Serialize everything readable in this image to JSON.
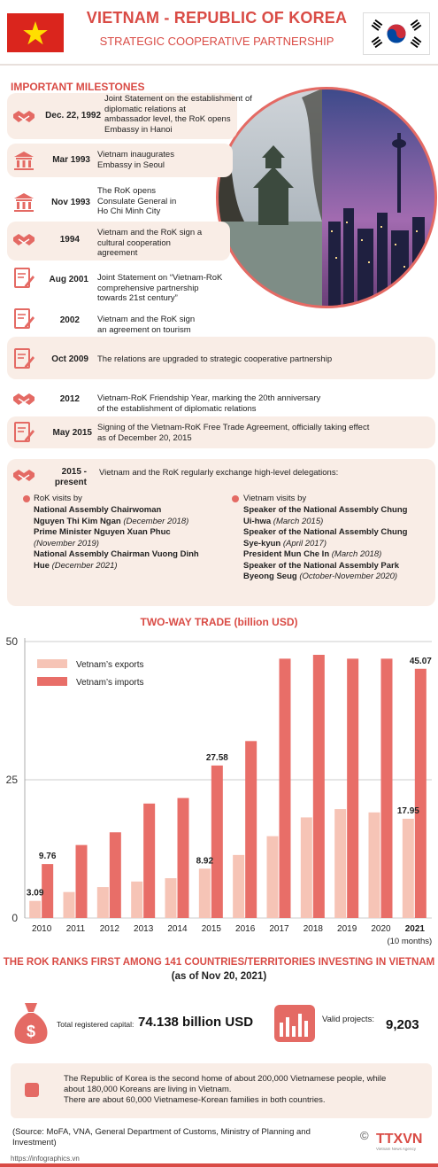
{
  "header": {
    "title": "VIETNAM - REPUBLIC OF KOREA",
    "subtitle": "STRATEGIC COOPERATIVE PARTNERSHIP",
    "colors": {
      "accent": "#d94b45",
      "soft": "#f9ede6"
    }
  },
  "milestones": {
    "title": "IMPORTANT MILESTONES",
    "items": [
      {
        "icon": "handshake-icon",
        "date": "Dec. 22, 1992",
        "text": [
          "Joint Statement on the establishment of",
          "diplomatic relations at",
          "ambassador level, the RoK opens",
          "Embassy in Hanoi"
        ]
      },
      {
        "icon": "building-icon",
        "date": "Mar 1993",
        "text": [
          "Vietnam inaugurates",
          " Embassy in Seoul"
        ]
      },
      {
        "icon": "building-icon",
        "date": "Nov 1993",
        "text": [
          "The RoK opens",
          "Consulate General in",
          "Ho Chi Minh City"
        ]
      },
      {
        "icon": "handshake-icon",
        "date": "1994",
        "text": [
          "Vietnam and the RoK sign a",
          "cultural cooperation",
          "agreement"
        ]
      },
      {
        "icon": "document-icon",
        "date": "Aug 2001",
        "text": [
          "Joint Statement on “Vietnam-RoK",
          "comprehensive partnership",
          "towards 21st century”"
        ]
      },
      {
        "icon": "document-icon",
        "date": "2002",
        "text": [
          "Vietnam and the RoK sign",
          "an agreement on tourism"
        ]
      },
      {
        "icon": "document-icon",
        "date": "Oct 2009",
        "text": [
          "The relations are upgraded to strategic cooperative partnership"
        ]
      },
      {
        "icon": "handshake-icon",
        "date": "2012",
        "text": [
          "Vietnam-RoK Friendship Year, marking the 20th anniversary",
          "of the establishment of diplomatic relations"
        ]
      },
      {
        "icon": "document-icon",
        "date": "May 2015",
        "text": [
          "Signing of the Vietnam-RoK Free Trade Agreement, officially taking effect",
          "as of December 20, 2015"
        ]
      },
      {
        "icon": "handshake-icon",
        "date": "2015 -",
        "date2": "present",
        "text": [
          "Vietnam and the RoK regularly exchange high-level delegations:"
        ]
      }
    ]
  },
  "visits": {
    "rok_head": "RoK visits by",
    "rok": [
      {
        "who": "National Assembly Chairwoman",
        "when": ""
      },
      {
        "who": "Nguyen Thi Kim Ngan ",
        "when": "(December 2018)"
      },
      {
        "who": "Prime Minister Nguyen Xuan Phuc",
        "when": ""
      },
      {
        "who": "",
        "when": "(November 2019)"
      },
      {
        "who": "National Assembly Chairman Vuong Dinh",
        "when": ""
      },
      {
        "who": "Hue ",
        "when": "(December 2021)"
      }
    ],
    "vn_head": "Vietnam visits by",
    "vn": [
      {
        "who": "Speaker of the National Assembly Chung",
        "when": ""
      },
      {
        "who": "Ui-hwa ",
        "when": "(March 2015)"
      },
      {
        "who": "Speaker of the National Assembly Chung",
        "when": ""
      },
      {
        "who": "Sye-kyun ",
        "when": "(April 2017)"
      },
      {
        "who": "President Mun Che In ",
        "when": "(March 2018)"
      },
      {
        "who": "Speaker of the National Assembly Park",
        "when": ""
      },
      {
        "who": "Byeong Seug ",
        "when": "(October-November 2020)"
      }
    ]
  },
  "chart_data": {
    "type": "bar",
    "title": "TWO-WAY TRADE  (billion USD)",
    "categories": [
      "2010",
      "2011",
      "2012",
      "2013",
      "2014",
      "2015",
      "2016",
      "2017",
      "2018",
      "2019",
      "2020",
      "2021"
    ],
    "category_note": "(10 months)",
    "ylim": [
      0,
      50
    ],
    "yticks": [
      0,
      25,
      50
    ],
    "grid": true,
    "legend_position": "top-left",
    "series": [
      {
        "name": "Vetnam’s exports",
        "color": "#f6c4b6",
        "values": [
          3.09,
          4.7,
          5.6,
          6.6,
          7.2,
          8.92,
          11.4,
          14.8,
          18.2,
          19.7,
          19.1,
          17.95
        ],
        "labels": [
          "3.09",
          "",
          "",
          "",
          "",
          "8.92",
          "",
          "",
          "",
          "",
          "",
          "17.95"
        ]
      },
      {
        "name": "Vetnam’s imports",
        "color": "#e86e68",
        "values": [
          9.76,
          13.2,
          15.5,
          20.7,
          21.7,
          27.58,
          32.0,
          46.9,
          47.6,
          46.9,
          46.9,
          45.07
        ],
        "labels": [
          "9.76",
          "",
          "",
          "",
          "",
          "27.58",
          "",
          "",
          "",
          "",
          "",
          "45.07"
        ]
      }
    ]
  },
  "rok": {
    "title": "THE ROK RANKS FIRST AMONG 141 COUNTRIES/TERRITORIES INVESTING IN VIETNAM",
    "subtitle": "(as of Nov 20, 2021)",
    "capital_label": "Total registered capital:",
    "capital_value": "74.138 billion USD",
    "projects_label": "Valid projects:",
    "projects_value": "9,203"
  },
  "note": {
    "lines": [
      "The Republic of Korea is the second home of about 200,000 Vietnamese people, while",
      "about 180,000 Koreans are living in Vietnam.",
      "There are about 60,000 Vietnamese-Korean families in both countries."
    ]
  },
  "footer": {
    "source": "(Source: MoFA, VNA, General Department of Customs, Ministry of Planning and Investment)",
    "copyright": "©",
    "logo": "TTXVN",
    "logo_sub": "Vietnam News Agency",
    "url": "https://infographics.vn"
  }
}
